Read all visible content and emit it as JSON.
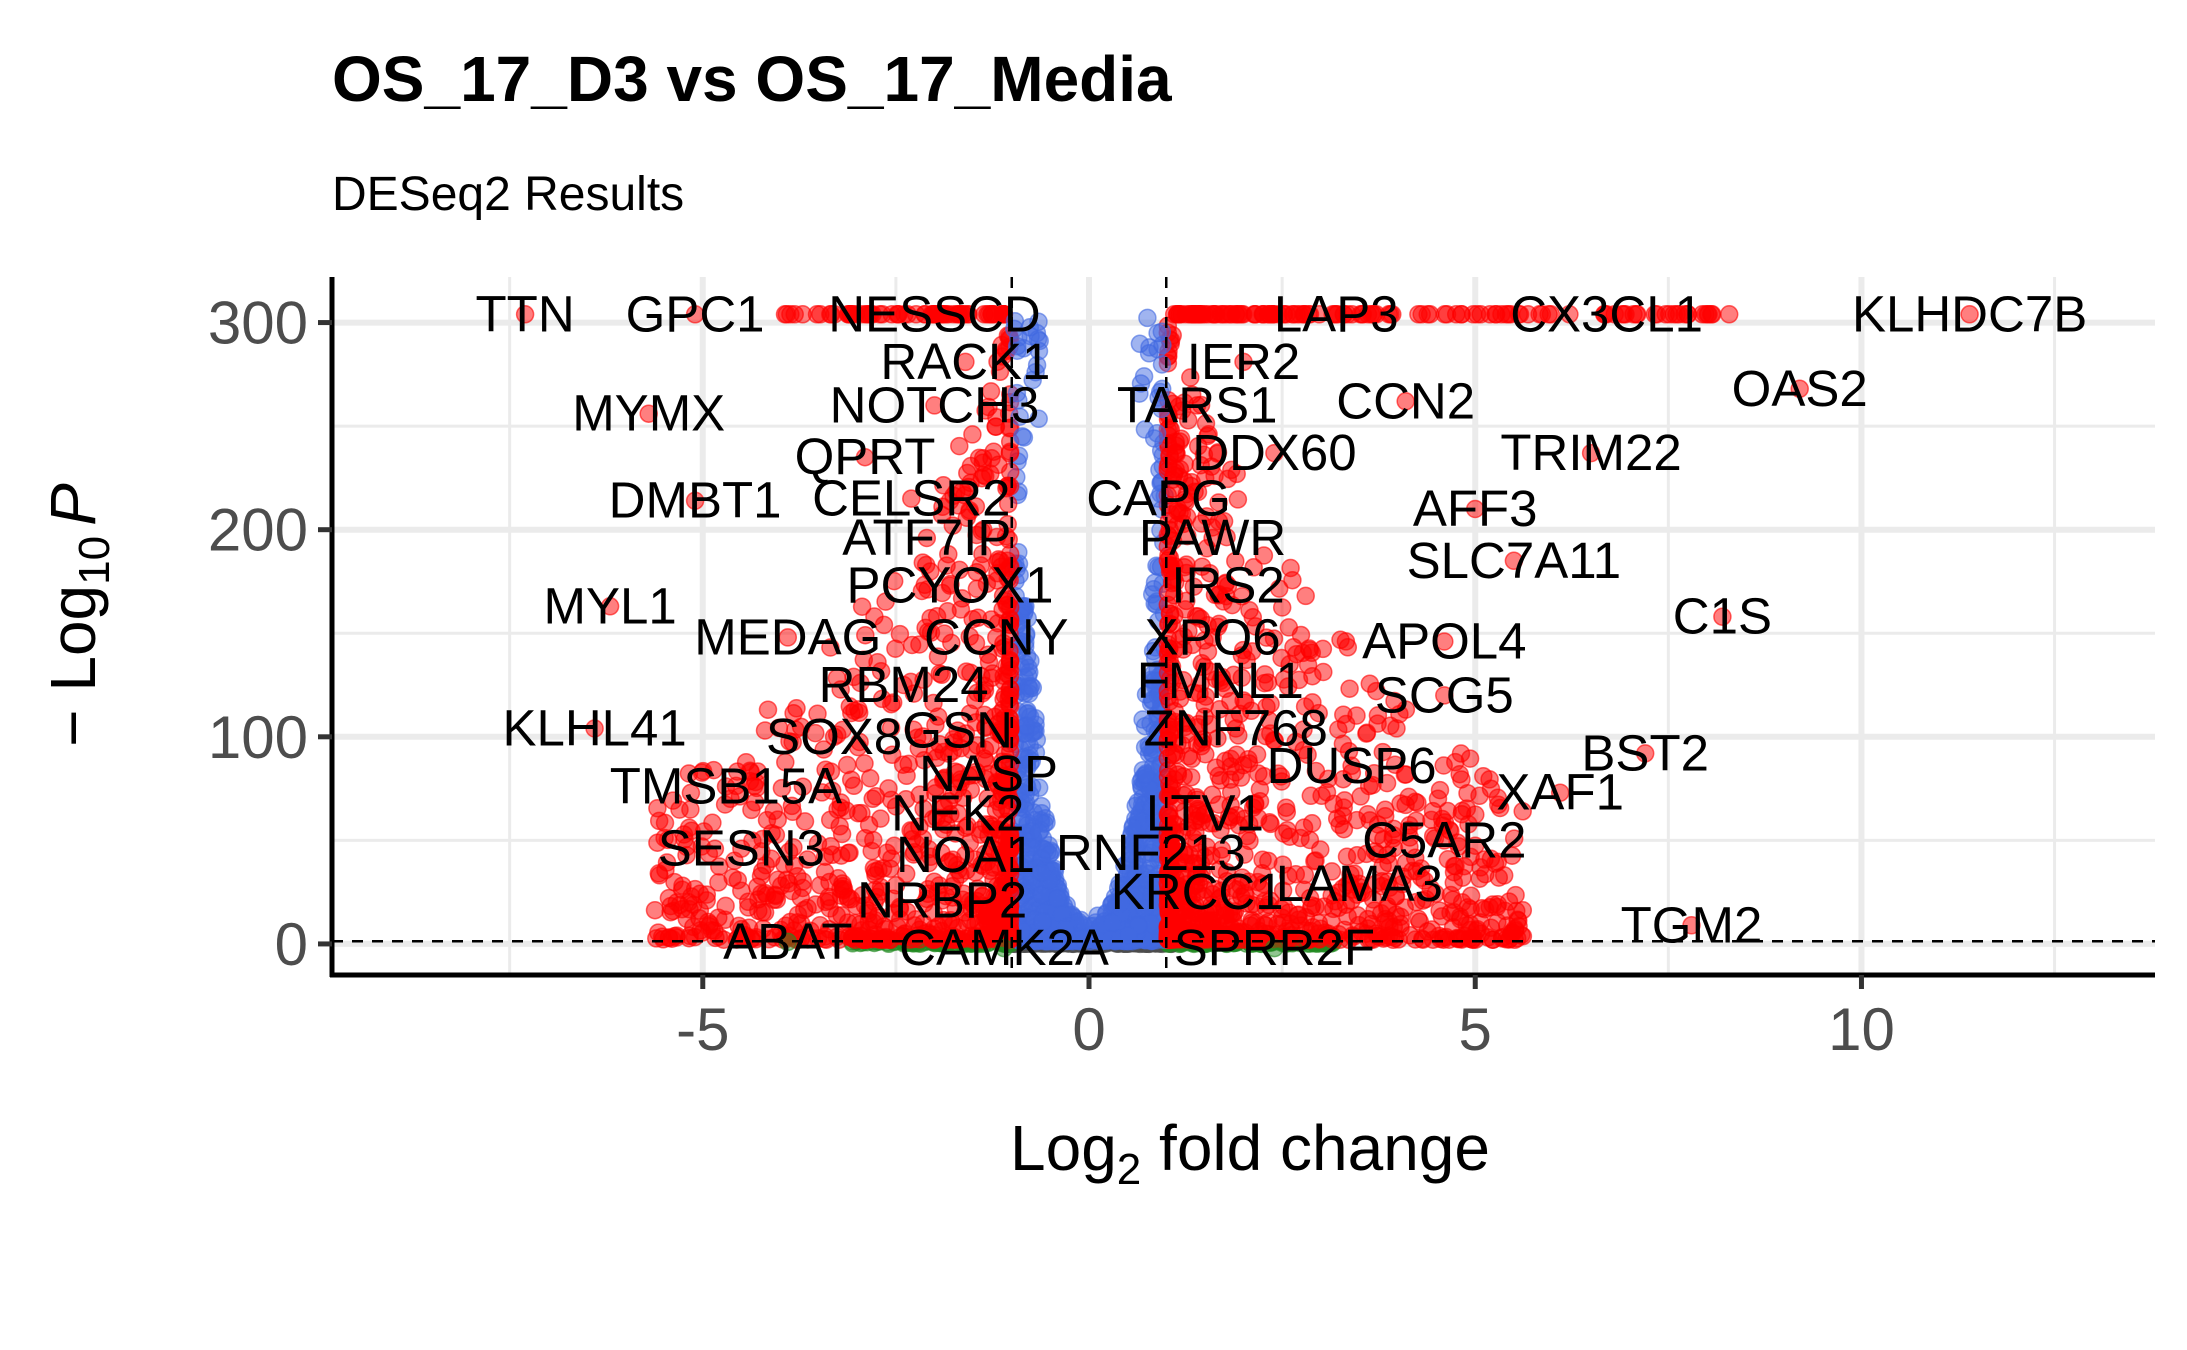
{
  "chart_data": {
    "type": "scatter",
    "title": "OS_17_D3 vs OS_17_Media",
    "subtitle": "DESeq2 Results",
    "xlabel": {
      "base": "Log",
      "sub": "2",
      "rest": " fold change"
    },
    "ylabel": {
      "prefix": "− Log",
      "sub": "10",
      "italic": "P"
    },
    "xlim": [
      -9.8,
      13.8
    ],
    "ylim": [
      -15,
      322
    ],
    "x_ticks": [
      -5,
      0,
      5,
      10
    ],
    "y_ticks": [
      0,
      100,
      200,
      300
    ],
    "fc_cutoff": 1,
    "p_cutoff_log10": 1.3,
    "grid": true,
    "colors": {
      "ns": "#4d4d4d",
      "log2fc_only": "#228b22",
      "p_only": "#4169e1",
      "p_and_log2fc": "#ff0000"
    },
    "labels": [
      {
        "text": "TTN",
        "x": -7.3,
        "y": 304
      },
      {
        "text": "GPC1",
        "x": -5.1,
        "y": 304
      },
      {
        "text": "NESSCD",
        "x": -2.0,
        "y": 304
      },
      {
        "text": "LAP3",
        "x": 3.2,
        "y": 304
      },
      {
        "text": "CX3CL1",
        "x": 6.7,
        "y": 304
      },
      {
        "text": "KLHDC7B",
        "x": 11.4,
        "y": 304
      },
      {
        "text": "RACK1",
        "x": -1.6,
        "y": 281
      },
      {
        "text": "IER2",
        "x": 2.0,
        "y": 281
      },
      {
        "text": "OAS2",
        "x": 9.2,
        "y": 268
      },
      {
        "text": "MYMX",
        "x": -5.7,
        "y": 256
      },
      {
        "text": "NOTCH3",
        "x": -2.0,
        "y": 260
      },
      {
        "text": "TARS1",
        "x": 1.4,
        "y": 260
      },
      {
        "text": "CCN2",
        "x": 4.1,
        "y": 262
      },
      {
        "text": "QPRT",
        "x": -2.9,
        "y": 235
      },
      {
        "text": "DDX60",
        "x": 2.4,
        "y": 237
      },
      {
        "text": "TRIM22",
        "x": 6.5,
        "y": 237
      },
      {
        "text": "DMBT1",
        "x": -5.1,
        "y": 214
      },
      {
        "text": "CELSR2",
        "x": -2.3,
        "y": 215
      },
      {
        "text": "CAPG",
        "x": 0.9,
        "y": 215
      },
      {
        "text": "AFF3",
        "x": 5.0,
        "y": 210
      },
      {
        "text": "ATF7IP",
        "x": -2.1,
        "y": 196
      },
      {
        "text": "PAWR",
        "x": 1.6,
        "y": 196
      },
      {
        "text": "SLC7A11",
        "x": 5.5,
        "y": 185
      },
      {
        "text": "PCYOX1",
        "x": -1.8,
        "y": 173
      },
      {
        "text": "IRS2",
        "x": 1.8,
        "y": 173
      },
      {
        "text": "MYL1",
        "x": -6.2,
        "y": 163
      },
      {
        "text": "C1S",
        "x": 8.2,
        "y": 158
      },
      {
        "text": "MEDAG",
        "x": -3.9,
        "y": 148
      },
      {
        "text": "CCNY",
        "x": -1.2,
        "y": 148
      },
      {
        "text": "XPO6",
        "x": 1.6,
        "y": 148
      },
      {
        "text": "APOL4",
        "x": 4.6,
        "y": 146
      },
      {
        "text": "RBM24",
        "x": -2.4,
        "y": 125
      },
      {
        "text": "FMNL1",
        "x": 1.7,
        "y": 127
      },
      {
        "text": "SCG5",
        "x": 4.6,
        "y": 120
      },
      {
        "text": "KLHL41",
        "x": -6.4,
        "y": 104
      },
      {
        "text": "SOX8",
        "x": -3.3,
        "y": 100
      },
      {
        "text": "GSN",
        "x": -1.7,
        "y": 103
      },
      {
        "text": "ZNF768",
        "x": 1.9,
        "y": 104
      },
      {
        "text": "BST2",
        "x": 7.2,
        "y": 92
      },
      {
        "text": "DUSP6",
        "x": 3.4,
        "y": 86
      },
      {
        "text": "NASP",
        "x": -1.3,
        "y": 82
      },
      {
        "text": "TMSB15A",
        "x": -4.7,
        "y": 76
      },
      {
        "text": "XAF1",
        "x": 6.1,
        "y": 73
      },
      {
        "text": "NEK2",
        "x": -1.7,
        "y": 63
      },
      {
        "text": "LTV1",
        "x": 1.5,
        "y": 63
      },
      {
        "text": "C5AR2",
        "x": 4.6,
        "y": 50
      },
      {
        "text": "SESN3",
        "x": -4.5,
        "y": 46
      },
      {
        "text": "NOA1",
        "x": -1.6,
        "y": 43
      },
      {
        "text": "RNF213",
        "x": 0.8,
        "y": 44
      },
      {
        "text": "LAMA3",
        "x": 3.5,
        "y": 29
      },
      {
        "text": "KRCC1",
        "x": 1.4,
        "y": 25
      },
      {
        "text": "NRBP2",
        "x": -1.9,
        "y": 21
      },
      {
        "text": "TGM2",
        "x": 7.8,
        "y": 9
      },
      {
        "text": "ABAT",
        "x": -3.9,
        "y": 1
      },
      {
        "text": "CAMK2A",
        "x": -1.1,
        "y": -2
      },
      {
        "text": "SPRR2F",
        "x": 2.4,
        "y": -2
      }
    ]
  }
}
